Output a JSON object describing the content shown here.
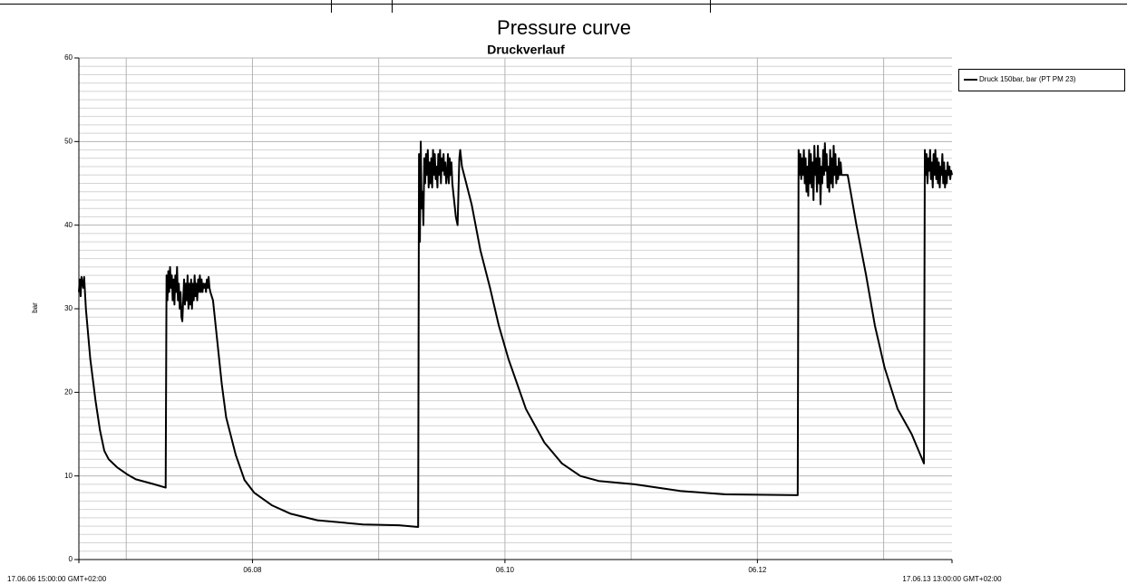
{
  "page_title": "Pressure curve",
  "chart_data": {
    "type": "line",
    "title": "Druckverlauf",
    "ylabel": "bar",
    "x": [
      "2017-06-06T15:00",
      "2017-06-06T15:10",
      "2017-06-06T15:20",
      "2017-06-06T15:30",
      "2017-06-06T15:50",
      "2017-06-06T16:00",
      "2017-06-06T16:20",
      "2017-06-06T17:10",
      "2017-06-06T18:10",
      "2017-06-06T19:00",
      "2017-06-06T19:50",
      "2017-06-06T20:40",
      "2017-06-06T22:20",
      "2017-06-07T00:10",
      "2017-06-07T01:50",
      "2017-06-07T05:20",
      "2017-06-07T07:30",
      "2017-06-07T07:40",
      "2017-06-07T07:50",
      "2017-06-07T08:00",
      "2017-06-07T08:10",
      "2017-06-07T08:20",
      "2017-06-07T08:30",
      "2017-06-07T08:40",
      "2017-06-07T08:50",
      "2017-06-07T09:00",
      "2017-06-07T09:10",
      "2017-06-07T09:20",
      "2017-06-07T09:30",
      "2017-06-07T09:40",
      "2017-06-07T09:50",
      "2017-06-07T10:00",
      "2017-06-07T10:10",
      "2017-06-07T10:20",
      "2017-06-07T10:30",
      "2017-06-07T10:40",
      "2017-06-07T10:50",
      "2017-06-07T11:00",
      "2017-06-07T11:10",
      "2017-06-07T11:20",
      "2017-06-07T11:30",
      "2017-06-07T11:40",
      "2017-06-07T11:50",
      "2017-06-07T12:00",
      "2017-06-07T12:10",
      "2017-06-07T12:20",
      "2017-06-07T12:30",
      "2017-06-07T12:40",
      "2017-06-07T12:50",
      "2017-06-07T13:00",
      "2017-06-07T13:10",
      "2017-06-07T13:20",
      "2017-06-07T13:30",
      "2017-06-07T13:40",
      "2017-06-07T13:50",
      "2017-06-07T14:00",
      "2017-06-07T14:10",
      "2017-06-07T14:20",
      "2017-06-07T14:30",
      "2017-06-07T14:40",
      "2017-06-07T14:50",
      "2017-06-07T15:00",
      "2017-06-07T15:10",
      "2017-06-07T15:20",
      "2017-06-07T15:30",
      "2017-06-07T15:40",
      "2017-06-07T15:50",
      "2017-06-07T16:00",
      "2017-06-07T16:30",
      "2017-06-07T17:20",
      "2017-06-07T18:10",
      "2017-06-07T19:00",
      "2017-06-07T20:50",
      "2017-06-07T22:30",
      "2017-06-08T00:20",
      "2017-06-08T03:40",
      "2017-06-08T07:10",
      "2017-06-08T12:20",
      "2017-06-08T21:00",
      "2017-06-09T03:50",
      "2017-06-09T07:30",
      "2017-06-09T07:40",
      "2017-06-09T07:50",
      "2017-06-09T08:00",
      "2017-06-09T08:10",
      "2017-06-09T08:20",
      "2017-06-09T08:30",
      "2017-06-09T08:40",
      "2017-06-09T08:50",
      "2017-06-09T09:00",
      "2017-06-09T09:10",
      "2017-06-09T09:20",
      "2017-06-09T09:30",
      "2017-06-09T09:40",
      "2017-06-09T09:50",
      "2017-06-09T10:00",
      "2017-06-09T10:10",
      "2017-06-09T10:20",
      "2017-06-09T10:30",
      "2017-06-09T10:40",
      "2017-06-09T10:50",
      "2017-06-09T11:00",
      "2017-06-09T11:10",
      "2017-06-09T11:20",
      "2017-06-09T11:30",
      "2017-06-09T11:40",
      "2017-06-09T11:50",
      "2017-06-09T12:00",
      "2017-06-09T12:10",
      "2017-06-09T12:20",
      "2017-06-09T12:30",
      "2017-06-09T12:40",
      "2017-06-09T12:50",
      "2017-06-09T13:00",
      "2017-06-09T13:10",
      "2017-06-09T13:20",
      "2017-06-09T13:30",
      "2017-06-09T13:40",
      "2017-06-09T13:50",
      "2017-06-09T14:00",
      "2017-06-09T14:10",
      "2017-06-09T14:20",
      "2017-06-09T14:30",
      "2017-06-09T14:40",
      "2017-06-09T14:50",
      "2017-06-09T15:00",
      "2017-06-09T15:10",
      "2017-06-09T15:20",
      "2017-06-09T15:30",
      "2017-06-09T15:50",
      "2017-06-09T17:40",
      "2017-06-09T19:20",
      "2017-06-09T21:10",
      "2017-06-09T22:50",
      "2017-06-10T00:40",
      "2017-06-10T02:20",
      "2017-06-10T04:00",
      "2017-06-10T07:30",
      "2017-06-10T10:50",
      "2017-06-10T14:20",
      "2017-06-10T17:50",
      "2017-06-11T00:40",
      "2017-06-11T09:20",
      "2017-06-11T17:50",
      "2017-06-12T07:40",
      "2017-06-12T07:50",
      "2017-06-12T08:00",
      "2017-06-12T08:10",
      "2017-06-12T08:20",
      "2017-06-12T08:30",
      "2017-06-12T08:40",
      "2017-06-12T08:50",
      "2017-06-12T09:00",
      "2017-06-12T09:10",
      "2017-06-12T09:20",
      "2017-06-12T09:30",
      "2017-06-12T09:40",
      "2017-06-12T09:50",
      "2017-06-12T10:00",
      "2017-06-12T10:10",
      "2017-06-12T10:20",
      "2017-06-12T10:30",
      "2017-06-12T10:40",
      "2017-06-12T10:50",
      "2017-06-12T11:00",
      "2017-06-12T11:10",
      "2017-06-12T11:20",
      "2017-06-12T11:30",
      "2017-06-12T11:40",
      "2017-06-12T11:50",
      "2017-06-12T12:00",
      "2017-06-12T12:10",
      "2017-06-12T12:20",
      "2017-06-12T12:30",
      "2017-06-12T12:40",
      "2017-06-12T12:50",
      "2017-06-12T13:00",
      "2017-06-12T13:10",
      "2017-06-12T13:20",
      "2017-06-12T13:30",
      "2017-06-12T13:40",
      "2017-06-12T13:50",
      "2017-06-12T14:00",
      "2017-06-12T14:10",
      "2017-06-12T14:20",
      "2017-06-12T14:30",
      "2017-06-12T14:40",
      "2017-06-12T14:50",
      "2017-06-12T15:00",
      "2017-06-12T15:10",
      "2017-06-12T15:20",
      "2017-06-12T15:30",
      "2017-06-12T15:40",
      "2017-06-12T15:50",
      "2017-06-12T16:00",
      "2017-06-12T17:10",
      "2017-06-12T18:50",
      "2017-06-12T20:40",
      "2017-06-12T22:20",
      "2017-06-13T00:10",
      "2017-06-13T02:40",
      "2017-06-13T05:20",
      "2017-06-13T07:40",
      "2017-06-13T07:50",
      "2017-06-13T08:00",
      "2017-06-13T08:10",
      "2017-06-13T08:20",
      "2017-06-13T08:30",
      "2017-06-13T08:40",
      "2017-06-13T08:50",
      "2017-06-13T09:00",
      "2017-06-13T09:10",
      "2017-06-13T09:20",
      "2017-06-13T09:30",
      "2017-06-13T09:40",
      "2017-06-13T09:50",
      "2017-06-13T10:00",
      "2017-06-13T10:10",
      "2017-06-13T10:20",
      "2017-06-13T10:30",
      "2017-06-13T10:40",
      "2017-06-13T10:50",
      "2017-06-13T11:00",
      "2017-06-13T11:10",
      "2017-06-13T11:20",
      "2017-06-13T11:30",
      "2017-06-13T11:40",
      "2017-06-13T11:50",
      "2017-06-13T12:00",
      "2017-06-13T12:10",
      "2017-06-13T12:20",
      "2017-06-13T12:30",
      "2017-06-13T12:40",
      "2017-06-13T12:50",
      "2017-06-13T13:00"
    ],
    "series": [
      {
        "name": "Druck 150bar, bar (PT PM 23)",
        "color": "#000000",
        "values": [
          32,
          33.5,
          31.5,
          33.8,
          32.5,
          33.8,
          30,
          24,
          19,
          15.5,
          13,
          12,
          11,
          10.2,
          9.6,
          9,
          8.6,
          34,
          31,
          34.5,
          32,
          35,
          32.5,
          34,
          31,
          33.5,
          30.5,
          34,
          32,
          35,
          31,
          33,
          30,
          32,
          29,
          28.5,
          31,
          33.5,
          30.5,
          33,
          31,
          34,
          30,
          33,
          30.5,
          33.5,
          30,
          33,
          31,
          34,
          31.5,
          33,
          31,
          33.5,
          32,
          34,
          32,
          33.5,
          32,
          33,
          32.5,
          33,
          32,
          33.5,
          32.5,
          33.8,
          32.5,
          32,
          31,
          26,
          21,
          17,
          12.5,
          9.5,
          8,
          6.5,
          5.5,
          4.7,
          4.2,
          4.1,
          3.9,
          48.5,
          38,
          50,
          42,
          44,
          40,
          48,
          45,
          48.5,
          46,
          49,
          44.5,
          47.5,
          45,
          48,
          44.5,
          49,
          46,
          48.5,
          45.5,
          47,
          44.5,
          48.5,
          46,
          49,
          45,
          48,
          46.5,
          48.5,
          46,
          47.5,
          45,
          46,
          48.5,
          45,
          48,
          46,
          47.5,
          45,
          44,
          43,
          42,
          41,
          40.5,
          40,
          44,
          48,
          49,
          47,
          42.5,
          37,
          32.5,
          28,
          24,
          21,
          18,
          14,
          11.5,
          10,
          9.4,
          9,
          8.2,
          7.8,
          7.7,
          49,
          46,
          48.5,
          45.5,
          48,
          46,
          49,
          45,
          48,
          44,
          47,
          43.5,
          49,
          45,
          48.5,
          44.5,
          47.5,
          43,
          49.5,
          46,
          48,
          44,
          49.5,
          45,
          48,
          42.5,
          47,
          45,
          49,
          46,
          49.8,
          46.5,
          48.5,
          44.5,
          47,
          44,
          49,
          45,
          48,
          44.5,
          49.5,
          46,
          48.5,
          45,
          47,
          45.5,
          48,
          46,
          47.5,
          46,
          46,
          40,
          34,
          28,
          23,
          18,
          15,
          11.5,
          49,
          46,
          48.5,
          45,
          48,
          46.5,
          49,
          45.5,
          47.5,
          44.5,
          48.5,
          46,
          49,
          45.5,
          48,
          45,
          47.5,
          44.5,
          47,
          46,
          48.5,
          45,
          47.5,
          44.5,
          46.5,
          45,
          47.5,
          46,
          47,
          45.5,
          46.5,
          46
        ]
      }
    ],
    "xlim": [
      "2017-06-06T15:00",
      "2017-06-13T13:00"
    ],
    "xticks": [
      {
        "value": "2017-06-06T15:00",
        "label": "17.06.06 15:00:00 GMT+02:00"
      },
      {
        "value": "2017-06-08T00:00",
        "label": "06.08"
      },
      {
        "value": "2017-06-10T00:00",
        "label": "06.10"
      },
      {
        "value": "2017-06-12T00:00",
        "label": "06.12"
      },
      {
        "value": "2017-06-13T13:00",
        "label": "17.06.13 13:00:00 GMT+02:00"
      }
    ],
    "xgrid": [
      "2017-06-07T00:00",
      "2017-06-08T00:00",
      "2017-06-09T00:00",
      "2017-06-10T00:00",
      "2017-06-11T00:00",
      "2017-06-12T00:00",
      "2017-06-13T00:00"
    ],
    "ylim": [
      0,
      60
    ],
    "yticks": [
      0,
      10,
      20,
      30,
      40,
      50,
      60
    ],
    "grid": true,
    "minor_grid": true,
    "legend": "right"
  }
}
